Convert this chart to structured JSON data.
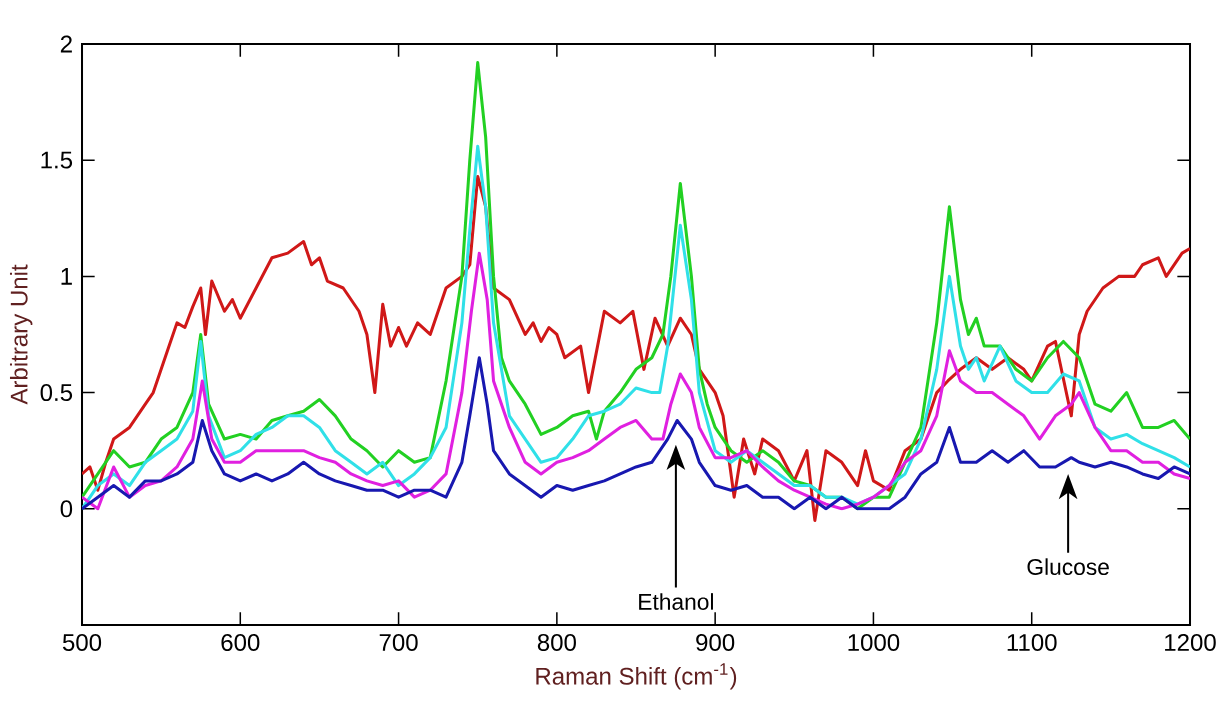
{
  "chart_data": {
    "type": "line",
    "xlabel": "Raman Shift (cm$^{-1}$)",
    "ylabel": "Arbitrary Unit",
    "xlim": [
      500,
      1200
    ],
    "ylim": [
      -0.5,
      2
    ],
    "xticks": [
      500,
      600,
      700,
      800,
      900,
      1000,
      1100,
      1200
    ],
    "yticks": [
      0,
      0.5,
      1,
      1.5,
      2
    ],
    "grid": false,
    "marker": "none",
    "line_style": "solid",
    "annotations": [
      "Ethanol",
      "Glucose"
    ],
    "series": [
      {
        "color": "#d01818",
        "x": [
          500,
          505,
          510,
          515,
          520,
          530,
          540,
          545,
          550,
          555,
          560,
          565,
          570,
          575,
          578,
          582,
          590,
          595,
          600,
          610,
          620,
          630,
          640,
          645,
          650,
          655,
          665,
          675,
          680,
          685,
          690,
          695,
          700,
          705,
          712,
          720,
          730,
          740,
          745,
          750,
          755,
          760,
          770,
          780,
          785,
          790,
          795,
          800,
          805,
          815,
          820,
          830,
          840,
          848,
          855,
          862,
          870,
          878,
          885,
          890,
          895,
          900,
          905,
          912,
          918,
          925,
          930,
          940,
          950,
          958,
          963,
          970,
          980,
          990,
          995,
          1000,
          1010,
          1020,
          1030,
          1040,
          1047,
          1055,
          1065,
          1075,
          1085,
          1095,
          1100,
          1110,
          1115,
          1125,
          1130,
          1135,
          1145,
          1155,
          1165,
          1170,
          1180,
          1185,
          1195,
          1200
        ],
        "values": [
          0.15,
          0.18,
          0.08,
          0.2,
          0.3,
          0.35,
          0.45,
          0.5,
          0.6,
          0.7,
          0.8,
          0.78,
          0.87,
          0.95,
          0.75,
          0.98,
          0.85,
          0.9,
          0.82,
          0.95,
          1.08,
          1.1,
          1.15,
          1.05,
          1.08,
          0.98,
          0.95,
          0.85,
          0.75,
          0.5,
          0.88,
          0.7,
          0.78,
          0.7,
          0.8,
          0.75,
          0.95,
          1.0,
          1.05,
          1.43,
          1.3,
          0.95,
          0.9,
          0.75,
          0.8,
          0.72,
          0.78,
          0.75,
          0.65,
          0.7,
          0.5,
          0.85,
          0.8,
          0.85,
          0.6,
          0.82,
          0.7,
          0.82,
          0.75,
          0.6,
          0.55,
          0.5,
          0.4,
          0.05,
          0.3,
          0.15,
          0.3,
          0.25,
          0.12,
          0.25,
          -0.05,
          0.25,
          0.2,
          0.1,
          0.25,
          0.12,
          0.08,
          0.25,
          0.3,
          0.5,
          0.55,
          0.6,
          0.65,
          0.6,
          0.65,
          0.6,
          0.55,
          0.7,
          0.72,
          0.4,
          0.75,
          0.85,
          0.95,
          1.0,
          1.0,
          1.05,
          1.08,
          1.0,
          1.1,
          1.12
        ]
      },
      {
        "color": "#22d022",
        "x": [
          500,
          510,
          520,
          530,
          540,
          550,
          560,
          570,
          575,
          580,
          590,
          600,
          610,
          620,
          630,
          640,
          650,
          660,
          670,
          680,
          690,
          700,
          710,
          720,
          730,
          740,
          745,
          750,
          755,
          760,
          765,
          770,
          780,
          790,
          800,
          810,
          820,
          825,
          830,
          840,
          850,
          860,
          867,
          872,
          878,
          885,
          890,
          895,
          900,
          910,
          920,
          930,
          940,
          950,
          960,
          970,
          980,
          990,
          1000,
          1010,
          1020,
          1030,
          1040,
          1048,
          1055,
          1060,
          1065,
          1070,
          1080,
          1090,
          1100,
          1110,
          1120,
          1130,
          1140,
          1150,
          1160,
          1170,
          1180,
          1190,
          1200
        ],
        "values": [
          0.05,
          0.15,
          0.25,
          0.18,
          0.2,
          0.3,
          0.35,
          0.5,
          0.75,
          0.45,
          0.3,
          0.32,
          0.3,
          0.38,
          0.4,
          0.42,
          0.47,
          0.4,
          0.3,
          0.25,
          0.18,
          0.25,
          0.2,
          0.22,
          0.55,
          1.0,
          1.5,
          1.92,
          1.6,
          1.0,
          0.65,
          0.55,
          0.45,
          0.32,
          0.35,
          0.4,
          0.42,
          0.3,
          0.42,
          0.5,
          0.6,
          0.65,
          0.75,
          1.0,
          1.4,
          1.0,
          0.6,
          0.45,
          0.35,
          0.25,
          0.2,
          0.25,
          0.2,
          0.12,
          0.1,
          0.05,
          0.05,
          0.0,
          0.05,
          0.05,
          0.2,
          0.35,
          0.8,
          1.3,
          0.9,
          0.75,
          0.82,
          0.7,
          0.7,
          0.6,
          0.55,
          0.65,
          0.72,
          0.65,
          0.45,
          0.42,
          0.5,
          0.35,
          0.35,
          0.38,
          0.3
        ]
      },
      {
        "color": "#30e0e8",
        "x": [
          500,
          510,
          520,
          530,
          540,
          550,
          560,
          570,
          575,
          580,
          590,
          600,
          610,
          620,
          630,
          640,
          650,
          660,
          670,
          680,
          690,
          700,
          710,
          720,
          730,
          740,
          745,
          750,
          755,
          760,
          770,
          780,
          790,
          800,
          810,
          820,
          830,
          840,
          850,
          860,
          865,
          870,
          878,
          885,
          890,
          900,
          910,
          920,
          930,
          940,
          950,
          960,
          970,
          980,
          990,
          1000,
          1010,
          1020,
          1030,
          1040,
          1048,
          1055,
          1060,
          1065,
          1070,
          1080,
          1090,
          1100,
          1110,
          1120,
          1130,
          1140,
          1150,
          1160,
          1170,
          1180,
          1190,
          1200
        ],
        "values": [
          0.0,
          0.1,
          0.15,
          0.1,
          0.2,
          0.25,
          0.3,
          0.42,
          0.72,
          0.4,
          0.22,
          0.25,
          0.32,
          0.35,
          0.4,
          0.4,
          0.35,
          0.25,
          0.2,
          0.15,
          0.2,
          0.1,
          0.15,
          0.22,
          0.35,
          0.8,
          1.2,
          1.56,
          1.3,
          0.8,
          0.4,
          0.3,
          0.2,
          0.22,
          0.3,
          0.4,
          0.42,
          0.45,
          0.52,
          0.5,
          0.5,
          0.7,
          1.22,
          0.9,
          0.5,
          0.25,
          0.2,
          0.25,
          0.2,
          0.15,
          0.1,
          0.1,
          0.05,
          0.05,
          0.02,
          0.05,
          0.1,
          0.15,
          0.3,
          0.6,
          1.0,
          0.7,
          0.6,
          0.65,
          0.55,
          0.7,
          0.55,
          0.5,
          0.5,
          0.58,
          0.55,
          0.35,
          0.3,
          0.32,
          0.28,
          0.25,
          0.22,
          0.18
        ]
      },
      {
        "color": "#e020e0",
        "x": [
          500,
          510,
          520,
          530,
          540,
          550,
          560,
          570,
          576,
          582,
          590,
          600,
          610,
          620,
          630,
          640,
          650,
          660,
          670,
          680,
          690,
          700,
          710,
          720,
          730,
          740,
          746,
          751,
          756,
          760,
          770,
          780,
          790,
          800,
          810,
          820,
          830,
          840,
          850,
          860,
          867,
          872,
          878,
          885,
          890,
          900,
          910,
          920,
          930,
          940,
          950,
          960,
          970,
          980,
          990,
          1000,
          1010,
          1020,
          1030,
          1040,
          1048,
          1055,
          1065,
          1075,
          1085,
          1095,
          1105,
          1115,
          1125,
          1130,
          1140,
          1150,
          1160,
          1170,
          1180,
          1190,
          1200
        ],
        "values": [
          0.05,
          0.0,
          0.18,
          0.05,
          0.1,
          0.12,
          0.18,
          0.3,
          0.55,
          0.3,
          0.2,
          0.2,
          0.25,
          0.25,
          0.25,
          0.25,
          0.22,
          0.2,
          0.15,
          0.12,
          0.1,
          0.12,
          0.05,
          0.08,
          0.15,
          0.5,
          0.85,
          1.1,
          0.9,
          0.55,
          0.35,
          0.2,
          0.15,
          0.2,
          0.22,
          0.25,
          0.3,
          0.35,
          0.38,
          0.3,
          0.3,
          0.45,
          0.58,
          0.5,
          0.35,
          0.22,
          0.22,
          0.25,
          0.18,
          0.12,
          0.08,
          0.05,
          0.02,
          0.0,
          0.02,
          0.05,
          0.1,
          0.2,
          0.25,
          0.4,
          0.68,
          0.55,
          0.5,
          0.5,
          0.45,
          0.4,
          0.3,
          0.4,
          0.45,
          0.5,
          0.35,
          0.25,
          0.25,
          0.2,
          0.2,
          0.15,
          0.13
        ]
      },
      {
        "color": "#1818b0",
        "x": [
          500,
          510,
          520,
          530,
          540,
          550,
          560,
          570,
          576,
          582,
          590,
          600,
          610,
          620,
          630,
          640,
          650,
          660,
          670,
          680,
          690,
          700,
          710,
          720,
          730,
          740,
          745,
          751,
          756,
          760,
          770,
          780,
          790,
          800,
          810,
          820,
          830,
          840,
          850,
          860,
          870,
          876,
          885,
          890,
          900,
          910,
          920,
          930,
          940,
          950,
          960,
          970,
          980,
          990,
          1000,
          1010,
          1020,
          1030,
          1040,
          1048,
          1055,
          1065,
          1075,
          1085,
          1095,
          1105,
          1115,
          1125,
          1130,
          1140,
          1150,
          1160,
          1170,
          1180,
          1190,
          1200
        ],
        "values": [
          0.0,
          0.05,
          0.1,
          0.05,
          0.12,
          0.12,
          0.15,
          0.2,
          0.38,
          0.25,
          0.15,
          0.12,
          0.15,
          0.12,
          0.15,
          0.2,
          0.15,
          0.12,
          0.1,
          0.08,
          0.08,
          0.05,
          0.08,
          0.08,
          0.05,
          0.2,
          0.4,
          0.65,
          0.45,
          0.25,
          0.15,
          0.1,
          0.05,
          0.1,
          0.08,
          0.1,
          0.12,
          0.15,
          0.18,
          0.2,
          0.3,
          0.38,
          0.3,
          0.2,
          0.1,
          0.08,
          0.1,
          0.05,
          0.05,
          0.0,
          0.05,
          0.0,
          0.05,
          0.0,
          0.0,
          0.0,
          0.05,
          0.15,
          0.2,
          0.35,
          0.2,
          0.2,
          0.25,
          0.2,
          0.25,
          0.18,
          0.18,
          0.22,
          0.2,
          0.18,
          0.2,
          0.18,
          0.15,
          0.13,
          0.18,
          0.15
        ]
      }
    ]
  }
}
